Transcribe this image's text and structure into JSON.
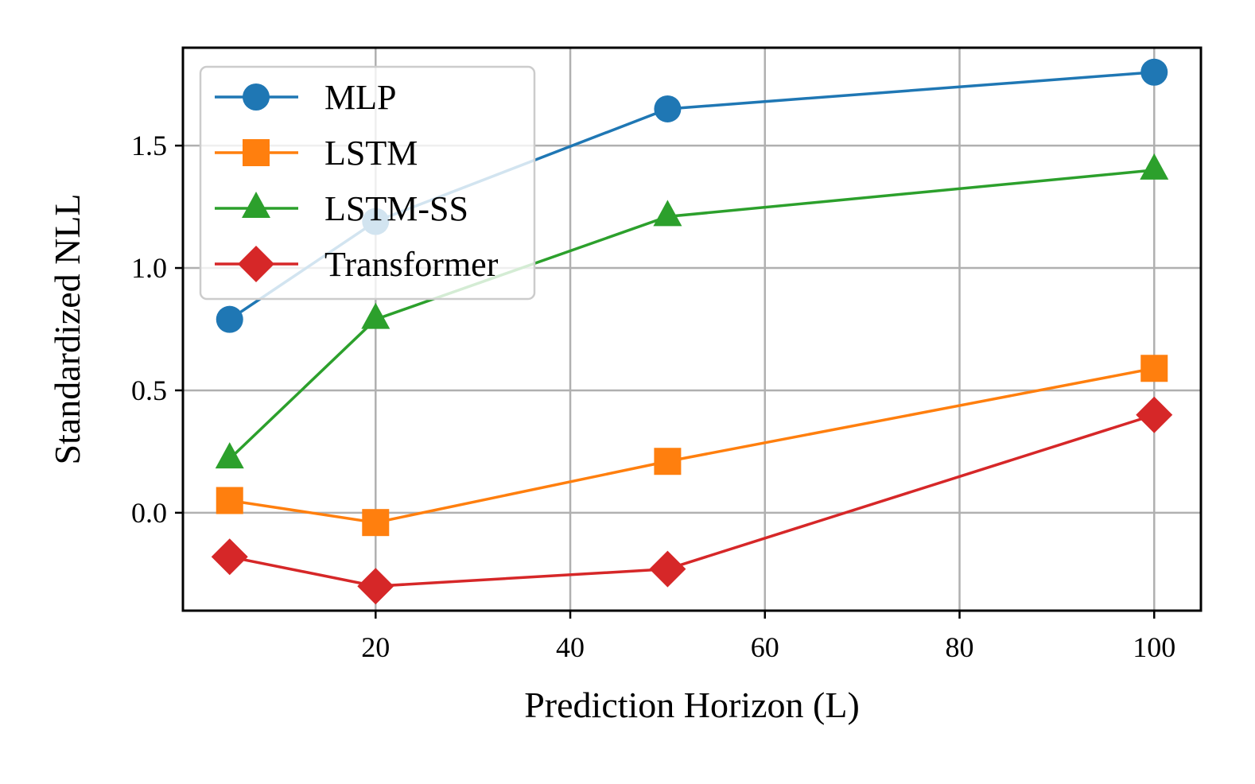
{
  "chart_data": {
    "type": "line",
    "title": "",
    "xlabel": "Prediction Horizon (L)",
    "ylabel": "Standardized NLL",
    "x": [
      5,
      20,
      50,
      100
    ],
    "xlim": [
      0.2,
      104.8
    ],
    "ylim": [
      -0.4,
      1.9
    ],
    "xticks": [
      20,
      40,
      60,
      80,
      100
    ],
    "xtick_labels": [
      "20",
      "40",
      "60",
      "80",
      "100"
    ],
    "yticks": [
      0.0,
      0.5,
      1.0,
      1.5
    ],
    "ytick_labels": [
      "0.0",
      "0.5",
      "1.0",
      "1.5"
    ],
    "grid": true,
    "legend_position": "top-left",
    "series": [
      {
        "name": "MLP",
        "color": "#1f77b4",
        "marker": "circle",
        "values": [
          0.79,
          1.19,
          1.65,
          1.8
        ]
      },
      {
        "name": "LSTM",
        "color": "#ff7f0e",
        "marker": "square",
        "values": [
          0.05,
          -0.04,
          0.21,
          0.59
        ]
      },
      {
        "name": "LSTM-SS",
        "color": "#2ca02c",
        "marker": "triangle",
        "values": [
          0.22,
          0.79,
          1.21,
          1.4
        ]
      },
      {
        "name": "Transformer",
        "color": "#d62728",
        "marker": "diamond",
        "values": [
          -0.18,
          -0.3,
          -0.23,
          0.4
        ]
      }
    ]
  }
}
